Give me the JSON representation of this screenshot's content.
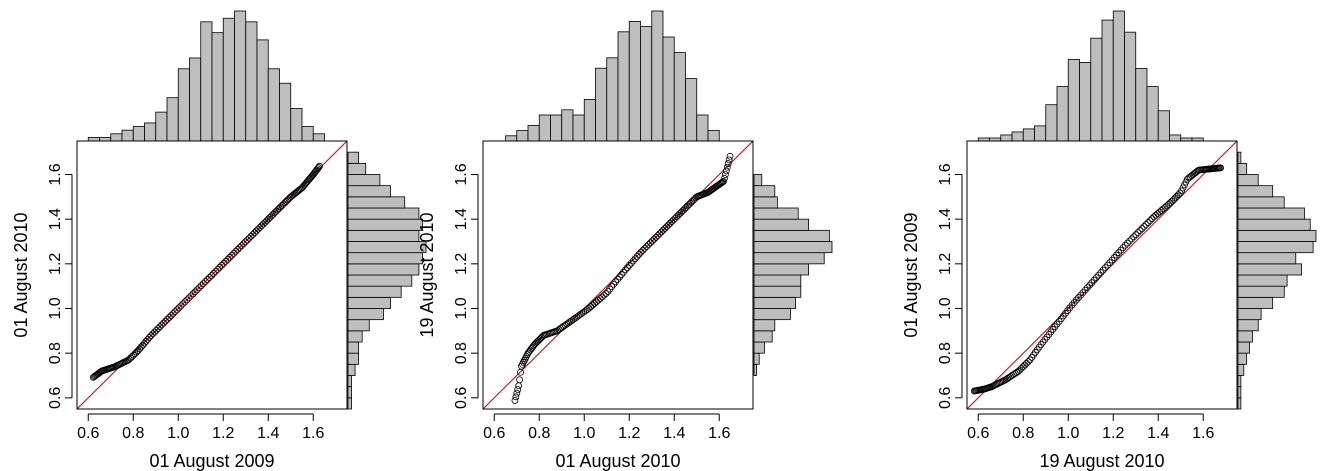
{
  "figure": {
    "colors": {
      "hist_fill": "#bebebe",
      "hist_stroke": "#000000",
      "point_stroke": "#000000",
      "ref_line": "#c0262d"
    }
  },
  "chart_data": [
    {
      "type": "scatter",
      "subtype": "qq-plot-with-marginal-histograms",
      "title": "",
      "xlabel": "01 August 2009",
      "ylabel": "01 August 2010",
      "xlim": [
        0.55,
        1.75
      ],
      "ylim": [
        0.55,
        1.75
      ],
      "x_ticks": [
        0.6,
        0.8,
        1.0,
        1.2,
        1.4,
        1.6
      ],
      "x_tick_labels": [
        "0.6",
        "0.8",
        "1.0",
        "1.2",
        "1.4",
        "1.6"
      ],
      "y_ticks": [
        0.6,
        0.8,
        1.0,
        1.2,
        1.4,
        1.6
      ],
      "y_tick_labels": [
        "0.6",
        "0.8",
        "1.0",
        "1.2",
        "1.4",
        "1.6"
      ],
      "reference_line": {
        "slope": 1,
        "intercept": 0
      },
      "quantile_anchors": {
        "x": [
          0.62,
          0.66,
          0.72,
          0.78,
          0.82,
          0.88,
          0.95,
          1.02,
          1.1,
          1.18,
          1.25,
          1.32,
          1.38,
          1.45,
          1.5,
          1.55,
          1.6,
          1.63
        ],
        "y": [
          0.69,
          0.72,
          0.74,
          0.77,
          0.81,
          0.88,
          0.95,
          1.02,
          1.1,
          1.18,
          1.25,
          1.32,
          1.38,
          1.45,
          1.5,
          1.54,
          1.6,
          1.64
        ]
      },
      "points_count": 150,
      "top_histogram": {
        "bin_edges": [
          0.55,
          0.6,
          0.65,
          0.7,
          0.75,
          0.8,
          0.85,
          0.9,
          0.95,
          1.0,
          1.05,
          1.1,
          1.15,
          1.2,
          1.25,
          1.3,
          1.35,
          1.4,
          1.45,
          1.5,
          1.55,
          1.6,
          1.65,
          1.7,
          1.75
        ],
        "counts": [
          0,
          1,
          1,
          2,
          3,
          4,
          5,
          8,
          12,
          20,
          23,
          33,
          30,
          34,
          36,
          33,
          28,
          20,
          16,
          9,
          4,
          2,
          0,
          0
        ]
      },
      "side_histogram": {
        "bin_edges": [
          0.55,
          0.6,
          0.65,
          0.7,
          0.75,
          0.8,
          0.85,
          0.9,
          0.95,
          1.0,
          1.05,
          1.1,
          1.15,
          1.2,
          1.25,
          1.3,
          1.35,
          1.4,
          1.45,
          1.5,
          1.55,
          1.6,
          1.65,
          1.7,
          1.75
        ],
        "counts": [
          1,
          1,
          1,
          2,
          3,
          3,
          4,
          6,
          10,
          12,
          15,
          18,
          20,
          21,
          22,
          20,
          21,
          20,
          16,
          12,
          9,
          5,
          3,
          0
        ]
      }
    },
    {
      "type": "scatter",
      "subtype": "qq-plot-with-marginal-histograms",
      "title": "",
      "xlabel": "01 August 2010",
      "ylabel": "19 August 2010",
      "xlim": [
        0.55,
        1.75
      ],
      "ylim": [
        0.55,
        1.75
      ],
      "x_ticks": [
        0.6,
        0.8,
        1.0,
        1.2,
        1.4,
        1.6
      ],
      "x_tick_labels": [
        "0.6",
        "0.8",
        "1.0",
        "1.2",
        "1.4",
        "1.6"
      ],
      "y_ticks": [
        0.6,
        0.8,
        1.0,
        1.2,
        1.4,
        1.6
      ],
      "y_tick_labels": [
        "0.6",
        "0.8",
        "1.0",
        "1.2",
        "1.4",
        "1.6"
      ],
      "reference_line": {
        "slope": 1,
        "intercept": 0
      },
      "quantile_anchors": {
        "x": [
          0.69,
          0.71,
          0.72,
          0.75,
          0.78,
          0.82,
          0.88,
          0.95,
          1.02,
          1.1,
          1.18,
          1.25,
          1.32,
          1.38,
          1.45,
          1.5,
          1.55,
          1.62,
          1.65
        ],
        "y": [
          0.58,
          0.66,
          0.74,
          0.8,
          0.84,
          0.88,
          0.9,
          0.95,
          1.0,
          1.07,
          1.17,
          1.25,
          1.32,
          1.38,
          1.45,
          1.5,
          1.52,
          1.57,
          1.69
        ]
      },
      "points_count": 150,
      "top_histogram": {
        "bin_edges": [
          0.55,
          0.6,
          0.65,
          0.7,
          0.75,
          0.8,
          0.85,
          0.9,
          0.95,
          1.0,
          1.05,
          1.1,
          1.15,
          1.2,
          1.25,
          1.3,
          1.35,
          1.4,
          1.45,
          1.5,
          1.55,
          1.6,
          1.65,
          1.7,
          1.75
        ],
        "counts": [
          0,
          0,
          1,
          2,
          3,
          5,
          5,
          6,
          5,
          8,
          14,
          16,
          21,
          23,
          22,
          25,
          20,
          17,
          12,
          5,
          2,
          0,
          0,
          0
        ]
      },
      "side_histogram": {
        "bin_edges": [
          0.55,
          0.6,
          0.65,
          0.7,
          0.75,
          0.8,
          0.85,
          0.9,
          0.95,
          1.0,
          1.05,
          1.1,
          1.15,
          1.2,
          1.25,
          1.3,
          1.35,
          1.4,
          1.45,
          1.5,
          1.55,
          1.6,
          1.65,
          1.7,
          1.75
        ],
        "counts": [
          0,
          0,
          0,
          1,
          2,
          4,
          7,
          8,
          14,
          16,
          18,
          18,
          21,
          27,
          30,
          29,
          21,
          17,
          9,
          8,
          3,
          0,
          0,
          0
        ]
      }
    },
    {
      "type": "scatter",
      "subtype": "qq-plot-with-marginal-histograms",
      "title": "",
      "xlabel": "19 August 2010",
      "ylabel": "01 August 2009",
      "xlim": [
        0.55,
        1.75
      ],
      "ylim": [
        0.55,
        1.75
      ],
      "x_ticks": [
        0.6,
        0.8,
        1.0,
        1.2,
        1.4,
        1.6
      ],
      "x_tick_labels": [
        "0.6",
        "0.8",
        "1.0",
        "1.2",
        "1.4",
        "1.6"
      ],
      "y_ticks": [
        0.6,
        0.8,
        1.0,
        1.2,
        1.4,
        1.6
      ],
      "y_tick_labels": [
        "0.6",
        "0.8",
        "1.0",
        "1.2",
        "1.4",
        "1.6"
      ],
      "reference_line": {
        "slope": 1,
        "intercept": 0
      },
      "quantile_anchors": {
        "x": [
          0.58,
          0.63,
          0.66,
          0.72,
          0.78,
          0.83,
          0.88,
          0.95,
          1.02,
          1.1,
          1.18,
          1.25,
          1.32,
          1.38,
          1.45,
          1.5,
          1.53,
          1.58,
          1.68
        ],
        "y": [
          0.63,
          0.64,
          0.65,
          0.68,
          0.72,
          0.77,
          0.84,
          0.93,
          1.02,
          1.11,
          1.2,
          1.28,
          1.35,
          1.41,
          1.47,
          1.52,
          1.58,
          1.62,
          1.63
        ]
      },
      "points_count": 150,
      "top_histogram": {
        "bin_edges": [
          0.55,
          0.6,
          0.65,
          0.7,
          0.75,
          0.8,
          0.85,
          0.9,
          0.95,
          1.0,
          1.05,
          1.1,
          1.15,
          1.2,
          1.25,
          1.3,
          1.35,
          1.4,
          1.45,
          1.5,
          1.55,
          1.6,
          1.65,
          1.7,
          1.75
        ],
        "counts": [
          0,
          1,
          1,
          2,
          3,
          4,
          5,
          12,
          18,
          27,
          26,
          34,
          40,
          43,
          36,
          24,
          18,
          10,
          2,
          1,
          1,
          0,
          0,
          0
        ]
      },
      "side_histogram": {
        "bin_edges": [
          0.55,
          0.6,
          0.65,
          0.7,
          0.75,
          0.8,
          0.85,
          0.9,
          0.95,
          1.0,
          1.05,
          1.1,
          1.15,
          1.2,
          1.25,
          1.3,
          1.35,
          1.4,
          1.45,
          1.5,
          1.55,
          1.6,
          1.65,
          1.7,
          1.75
        ],
        "counts": [
          1,
          1,
          1,
          2,
          3,
          4,
          5,
          7,
          8,
          12,
          16,
          17,
          22,
          20,
          26,
          27,
          25,
          23,
          16,
          12,
          7,
          3,
          1,
          0
        ]
      }
    }
  ]
}
